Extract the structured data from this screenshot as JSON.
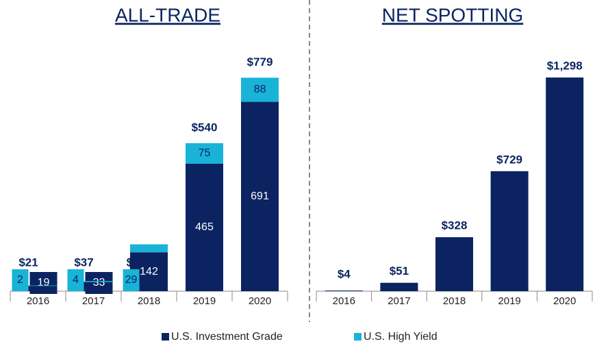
{
  "chart_data": [
    {
      "type": "stacked-bar",
      "title": "ALL-TRADE",
      "categories": [
        "2016",
        "2017",
        "2018",
        "2019",
        "2020"
      ],
      "series": [
        {
          "name": "U.S. Investment Grade",
          "color": "#0b2461",
          "values": [
            19,
            33,
            142,
            465,
            691
          ]
        },
        {
          "name": "U.S. High Yield",
          "color": "#19b3d8",
          "values": [
            2,
            4,
            29,
            75,
            88
          ]
        }
      ],
      "totals": [
        21,
        37,
        170,
        540,
        779
      ],
      "total_labels": [
        "$21",
        "$37",
        "$170",
        "$540",
        "$779"
      ],
      "ylim": [
        0,
        850
      ]
    },
    {
      "type": "bar",
      "title": "NET SPOTTING",
      "categories": [
        "2016",
        "2017",
        "2018",
        "2019",
        "2020"
      ],
      "color": "#0b2461",
      "values": [
        4,
        51,
        328,
        729,
        1298
      ],
      "value_labels": [
        "$4",
        "$51",
        "$328",
        "$729",
        "$1,298"
      ],
      "ylim": [
        0,
        1415
      ]
    }
  ]
}
